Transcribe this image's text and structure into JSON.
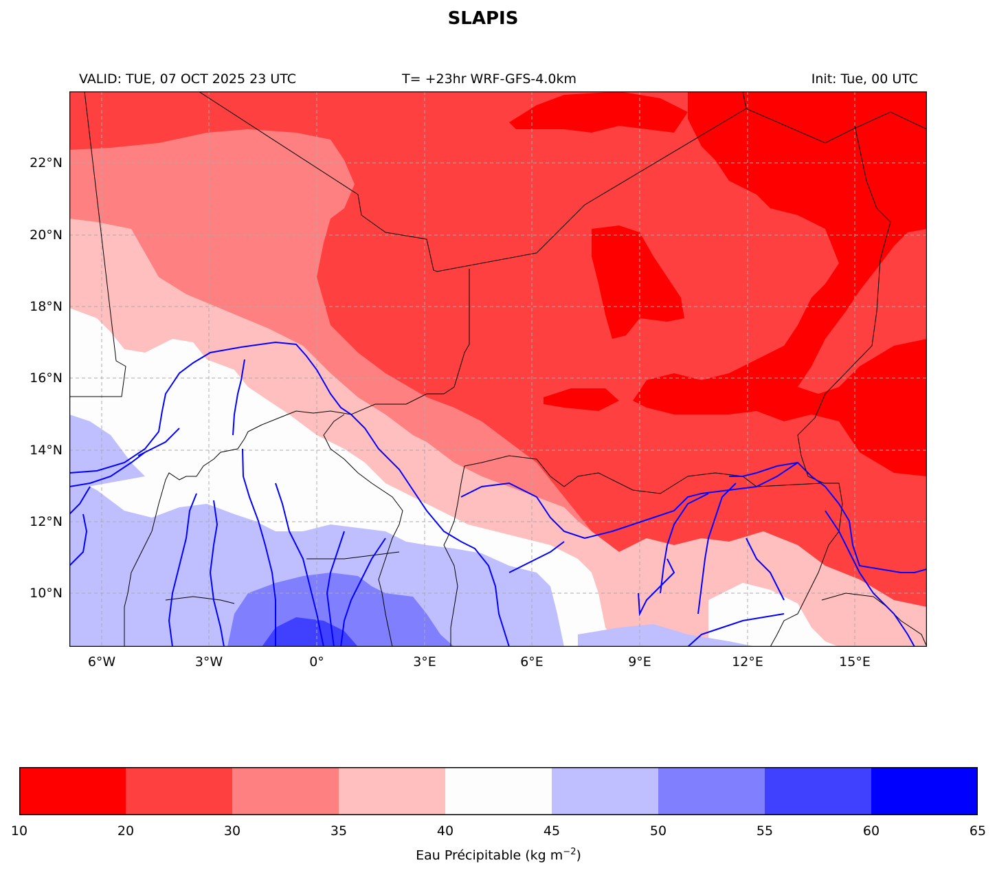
{
  "title": "SLAPIS",
  "subtitle": {
    "left": "VALID: TUE, 07 OCT 2025 23 UTC",
    "center": "T= +23hr WRF-GFS-4.0km",
    "right": "Init: Tue, 00 UTC"
  },
  "map": {
    "lon_range": [
      -7,
      17
    ],
    "lat_range": [
      8.5,
      24
    ],
    "lat_ticks": [
      "22°N",
      "20°N",
      "18°N",
      "16°N",
      "14°N",
      "12°N",
      "10°N"
    ],
    "lon_ticks": [
      "6°W",
      "3°W",
      "0°",
      "3°E",
      "6°E",
      "9°E",
      "12°E",
      "15°E"
    ],
    "gridlines": true,
    "field": "precipitable water",
    "colors": {
      "10-20": "#ff0000",
      "20-30": "#ff4040",
      "30-35": "#ff8080",
      "35-40": "#ffbfbf",
      "40-45": "#fdfdfd",
      "45-50": "#bfbfff",
      "50-55": "#8080ff",
      "55-60": "#4040ff",
      "60-65": "#0000ff"
    },
    "river_color": "#0000ff",
    "border_color": "#000000"
  },
  "colorbar": {
    "ticks": [
      "10",
      "20",
      "30",
      "35",
      "40",
      "45",
      "50",
      "55",
      "60",
      "65"
    ],
    "colors": [
      "#ff0000",
      "#ff4040",
      "#ff8080",
      "#ffbfbf",
      "#fdfdfd",
      "#bfbfff",
      "#8080ff",
      "#4040ff",
      "#0000ff"
    ],
    "label": "Eau Précipitable (kg m",
    "label_exp": "−2",
    "label_close": ")"
  }
}
